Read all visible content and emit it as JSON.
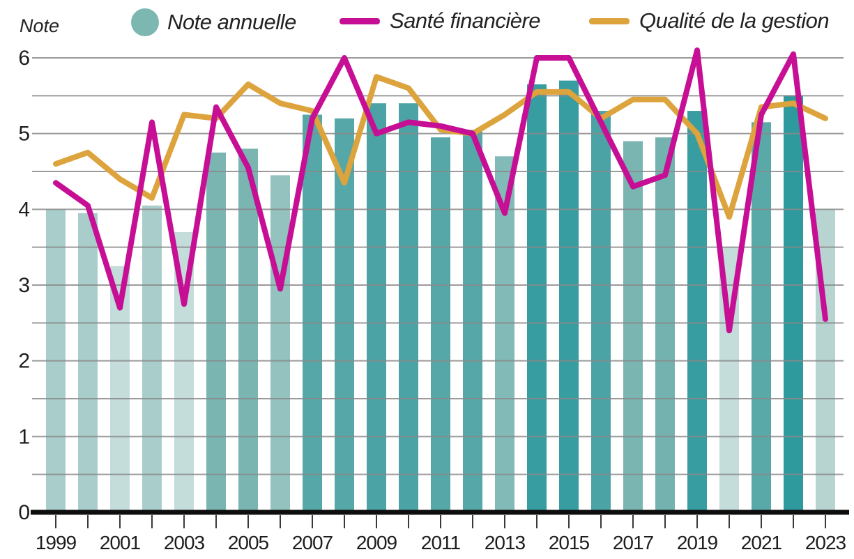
{
  "chart_data": {
    "type": "bar+line",
    "title": "",
    "y_axis": {
      "label": "Note",
      "min": 0,
      "max": 6,
      "major_tick_step": 1,
      "grid_step": 0.5,
      "tick_labels": [
        "0",
        "1",
        "2",
        "3",
        "4",
        "5",
        "6"
      ],
      "grid_on": true
    },
    "x_axis": {
      "years": [
        1999,
        2000,
        2001,
        2002,
        2003,
        2004,
        2005,
        2006,
        2007,
        2008,
        2009,
        2010,
        2011,
        2012,
        2013,
        2014,
        2015,
        2016,
        2017,
        2018,
        2019,
        2020,
        2021,
        2022,
        2023
      ],
      "labeled_years": [
        1999,
        2001,
        2003,
        2005,
        2007,
        2009,
        2011,
        2013,
        2015,
        2017,
        2019,
        2021,
        2023
      ]
    },
    "series": [
      {
        "name": "Note annuelle",
        "type": "bar",
        "values": [
          4.0,
          3.95,
          3.25,
          4.05,
          3.7,
          4.75,
          4.8,
          4.45,
          5.25,
          5.2,
          5.4,
          5.4,
          4.95,
          5.05,
          4.7,
          5.65,
          5.7,
          5.3,
          4.9,
          4.95,
          5.3,
          3.5,
          5.15,
          5.5,
          4.0
        ],
        "bar_colors": [
          "#a9cdca",
          "#a9cdca",
          "#c4dcda",
          "#a9cdca",
          "#c4dcda",
          "#7ab5b2",
          "#7ab5b2",
          "#93c2bf",
          "#56a7a7",
          "#56a7a7",
          "#4ba3a5",
          "#4ba3a5",
          "#56a7a7",
          "#56a7a7",
          "#82bab7",
          "#389da0",
          "#389da0",
          "#4ba3a5",
          "#7ab5b2",
          "#74b2b0",
          "#389da0",
          "#c4dcda",
          "#5aa9a9",
          "#2f9a9d",
          "#b7d4d1"
        ]
      },
      {
        "name": "Santé financière",
        "type": "line",
        "color": "#c60f94",
        "values": [
          4.35,
          4.05,
          2.7,
          5.15,
          2.75,
          5.35,
          4.55,
          2.95,
          5.2,
          6.0,
          5.0,
          5.15,
          5.1,
          5.0,
          3.95,
          6.0,
          6.0,
          5.15,
          4.3,
          4.45,
          6.1,
          2.4,
          5.25,
          6.05,
          2.55
        ]
      },
      {
        "name": "Qualité de la gestion",
        "type": "line",
        "color": "#dda33c",
        "values": [
          4.6,
          4.75,
          4.4,
          4.15,
          5.25,
          5.2,
          5.65,
          5.4,
          5.3,
          4.35,
          5.75,
          5.6,
          5.05,
          5.0,
          5.25,
          5.55,
          5.55,
          5.2,
          5.45,
          5.45,
          5.0,
          3.9,
          5.35,
          5.4,
          5.2
        ]
      }
    ],
    "legend": {
      "position": "top",
      "items": [
        {
          "label": "Note annuelle",
          "swatch": "circle",
          "color": "#7cb7b2"
        },
        {
          "label": "Santé financière",
          "swatch": "line",
          "color": "#c60f94"
        },
        {
          "label": "Qualité de la gestion",
          "swatch": "line",
          "color": "#dda33c"
        }
      ]
    },
    "style": {
      "grid_color": "#8a8a8a",
      "baseline_color": "#0e0e0e",
      "tick_color": "#3a3a3a",
      "text_color": "#1d1d1d",
      "background": "#ffffff"
    }
  }
}
